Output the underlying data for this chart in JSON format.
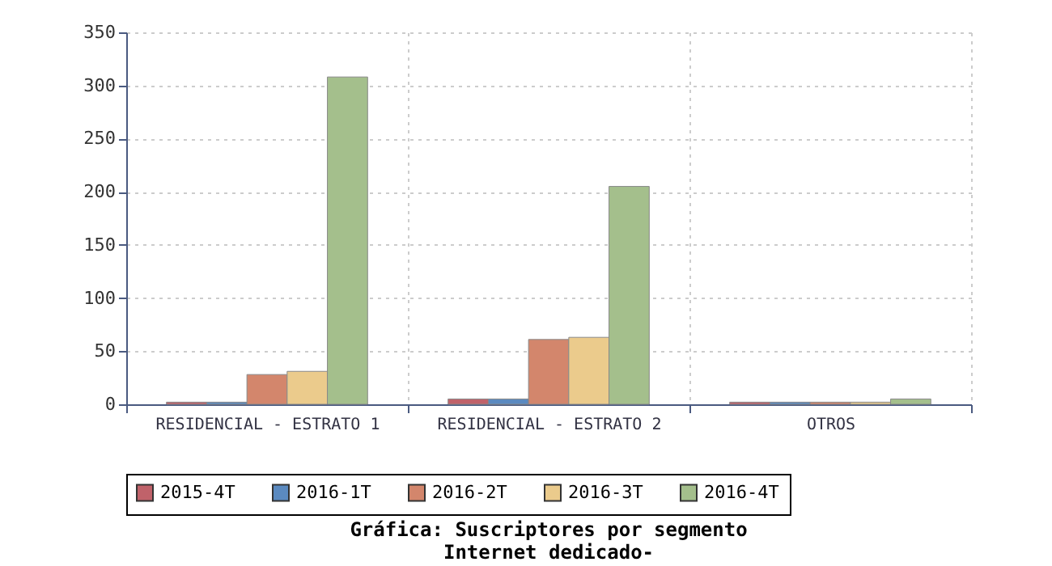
{
  "chart_data": {
    "type": "bar",
    "title": "Gráfica: Suscriptores por segmento",
    "subtitle": "Internet dedicado-",
    "categories": [
      "RESIDENCIAL - ESTRATO 1",
      "RESIDENCIAL - ESTRATO 2",
      "OTROS"
    ],
    "series": [
      {
        "name": "2015-4T",
        "color": "#c0626a",
        "values": [
          2,
          5,
          2
        ]
      },
      {
        "name": "2016-1T",
        "color": "#5b8ac0",
        "values": [
          2,
          5,
          2
        ]
      },
      {
        "name": "2016-2T",
        "color": "#d3866c",
        "values": [
          28,
          61,
          2
        ]
      },
      {
        "name": "2016-3T",
        "color": "#ebcb8c",
        "values": [
          31,
          63,
          2
        ]
      },
      {
        "name": "2016-4T",
        "color": "#a4bf8c",
        "values": [
          308,
          205,
          5
        ]
      }
    ],
    "ylim": [
      0,
      350
    ],
    "yticks": [
      0,
      50,
      100,
      150,
      200,
      250,
      300,
      350
    ],
    "grid": true,
    "legend": "bottom"
  }
}
